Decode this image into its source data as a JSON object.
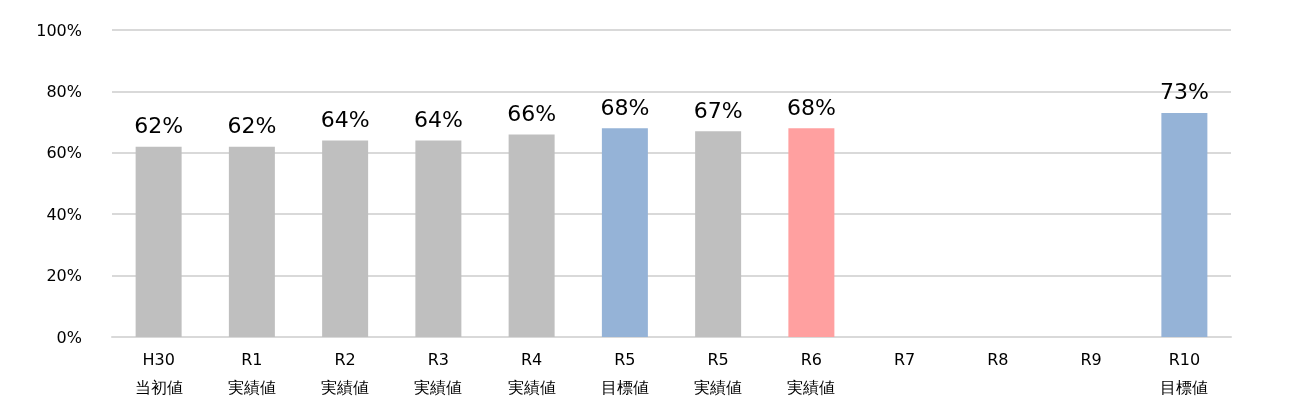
{
  "chart_data": {
    "type": "bar",
    "categories": [
      "H30\n当初値",
      "R1\n実績値",
      "R2\n実績値",
      "R3\n実績値",
      "R4\n実績値",
      "R5\n目標値",
      "R5\n実績値",
      "R6\n実績値",
      "R7",
      "R8",
      "R9",
      "R10\n目標値"
    ],
    "values": [
      62,
      62,
      64,
      64,
      66,
      68,
      67,
      68,
      null,
      null,
      null,
      73
    ],
    "colors": [
      "#bfbfbf",
      "#bfbfbf",
      "#bfbfbf",
      "#bfbfbf",
      "#bfbfbf",
      "#95b3d7",
      "#bfbfbf",
      "#ffa0a0",
      null,
      null,
      null,
      "#95b3d7"
    ],
    "value_labels": [
      "62%",
      "62%",
      "64%",
      "64%",
      "66%",
      "68%",
      "67%",
      "68%",
      null,
      null,
      null,
      "73%"
    ],
    "ylim": [
      0,
      100
    ],
    "yticks": [
      {
        "value": 0,
        "label": "0%"
      },
      {
        "value": 20,
        "label": "20%"
      },
      {
        "value": 40,
        "label": "40%"
      },
      {
        "value": 60,
        "label": "60%"
      },
      {
        "value": 80,
        "label": "80%"
      },
      {
        "value": 100,
        "label": "100%"
      }
    ],
    "grid": "y"
  }
}
